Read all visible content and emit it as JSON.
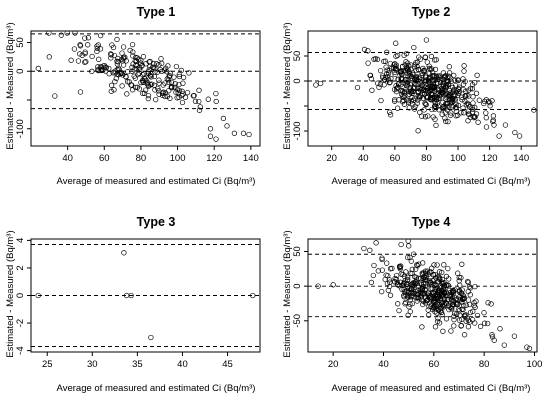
{
  "chart_data": [
    {
      "type": "scatter",
      "title": "Type 1",
      "xlabel": "Average of measured and estimated Ci (Bq/m³)",
      "ylabel": "Estimated - Measured (Bq/m³)",
      "xlim": [
        20,
        145
      ],
      "ylim": [
        -130,
        70
      ],
      "xticks": [
        40,
        60,
        80,
        100,
        120,
        140
      ],
      "yticks": [
        -100,
        -50,
        0,
        50
      ],
      "ytick_labels": [
        "-100",
        "",
        "0",
        "50"
      ],
      "hlines": [
        65,
        0,
        -65
      ],
      "cloud": {
        "n": 230,
        "xmin": 23,
        "xmax": 135,
        "slope": -1.15,
        "x0": 60,
        "y0": 20,
        "sd": 20,
        "seed": 11
      },
      "points": [
        {
          "x": 24,
          "y": 5
        },
        {
          "x": 30,
          "y": 25
        },
        {
          "x": 58,
          "y": 62
        },
        {
          "x": 118,
          "y": -100
        },
        {
          "x": 121,
          "y": -118
        },
        {
          "x": 127,
          "y": -95
        },
        {
          "x": 131,
          "y": -108
        },
        {
          "x": 136,
          "y": -108
        },
        {
          "x": 139,
          "y": -110
        },
        {
          "x": 112,
          "y": -68
        },
        {
          "x": 125,
          "y": -82
        },
        {
          "x": 118,
          "y": -113
        },
        {
          "x": 33,
          "y": -43
        },
        {
          "x": 47,
          "y": -36
        }
      ]
    },
    {
      "type": "scatter",
      "title": "Type 2",
      "xlabel": "Average of measured and estimated Ci (Bq/m³)",
      "ylabel": "Estimated - Measured (Bq/m³)",
      "xlim": [
        5,
        150
      ],
      "ylim": [
        -130,
        100
      ],
      "xticks": [
        20,
        40,
        60,
        80,
        100,
        120,
        140
      ],
      "yticks": [
        -100,
        -50,
        0,
        50
      ],
      "ytick_labels": [
        "-100",
        "",
        "0",
        "50"
      ],
      "hlines": [
        57,
        0,
        -57
      ],
      "cloud": {
        "n": 480,
        "xmin": 25,
        "xmax": 140,
        "slope": -0.95,
        "x0": 55,
        "y0": 12,
        "sd": 26,
        "seed": 22
      },
      "points": [
        {
          "x": 10,
          "y": -8
        },
        {
          "x": 13,
          "y": -5
        },
        {
          "x": 80,
          "y": 82
        },
        {
          "x": 72,
          "y": 67
        },
        {
          "x": 148,
          "y": -58
        },
        {
          "x": 126,
          "y": -110
        },
        {
          "x": 136,
          "y": -103
        },
        {
          "x": 139,
          "y": -110
        },
        {
          "x": 130,
          "y": -88
        },
        {
          "x": 118,
          "y": -92
        }
      ]
    },
    {
      "type": "scatter",
      "title": "Type 3",
      "xlabel": "Average of measured and estimated Ci (Bq/m³)",
      "ylabel": "Estimated - Measured (Bq/m³)",
      "xlim": [
        23.2,
        48.6
      ],
      "ylim": [
        -4.1,
        4.1
      ],
      "xticks": [
        25,
        30,
        35,
        40,
        45
      ],
      "yticks": [
        -4,
        -2,
        0,
        2,
        4
      ],
      "ytick_labels": [
        "-4",
        "-2",
        "0",
        "2",
        "4"
      ],
      "hlines": [
        3.7,
        0,
        -3.7
      ],
      "points": [
        {
          "x": 24,
          "y": 0
        },
        {
          "x": 33.5,
          "y": 3.1
        },
        {
          "x": 33.8,
          "y": 0
        },
        {
          "x": 34.3,
          "y": 0
        },
        {
          "x": 36.5,
          "y": -3.05
        },
        {
          "x": 47.8,
          "y": 0
        }
      ]
    },
    {
      "type": "scatter",
      "title": "Type 4",
      "xlabel": "Average of measured and estimated Ci (Bq/m³)",
      "ylabel": "Estimated - Measured (Bq/m³)",
      "xlim": [
        10,
        101
      ],
      "ylim": [
        -95,
        68
      ],
      "xticks": [
        20,
        40,
        60,
        80,
        100
      ],
      "yticks": [
        -50,
        0,
        50
      ],
      "ytick_labels": [
        "-50",
        "0",
        "50"
      ],
      "hlines": [
        46,
        0,
        -44
      ],
      "cloud": {
        "n": 420,
        "xmin": 28,
        "xmax": 92,
        "slope": -1.3,
        "x0": 45,
        "y0": 10,
        "sd": 18,
        "seed": 33
      },
      "points": [
        {
          "x": 14,
          "y": 0
        },
        {
          "x": 20,
          "y": 2
        },
        {
          "x": 97,
          "y": -88
        },
        {
          "x": 98,
          "y": -90
        },
        {
          "x": 88,
          "y": -85
        },
        {
          "x": 92,
          "y": -72
        },
        {
          "x": 84,
          "y": -78
        },
        {
          "x": 47,
          "y": 60
        },
        {
          "x": 50,
          "y": 58
        },
        {
          "x": 60,
          "y": -22
        }
      ]
    }
  ]
}
